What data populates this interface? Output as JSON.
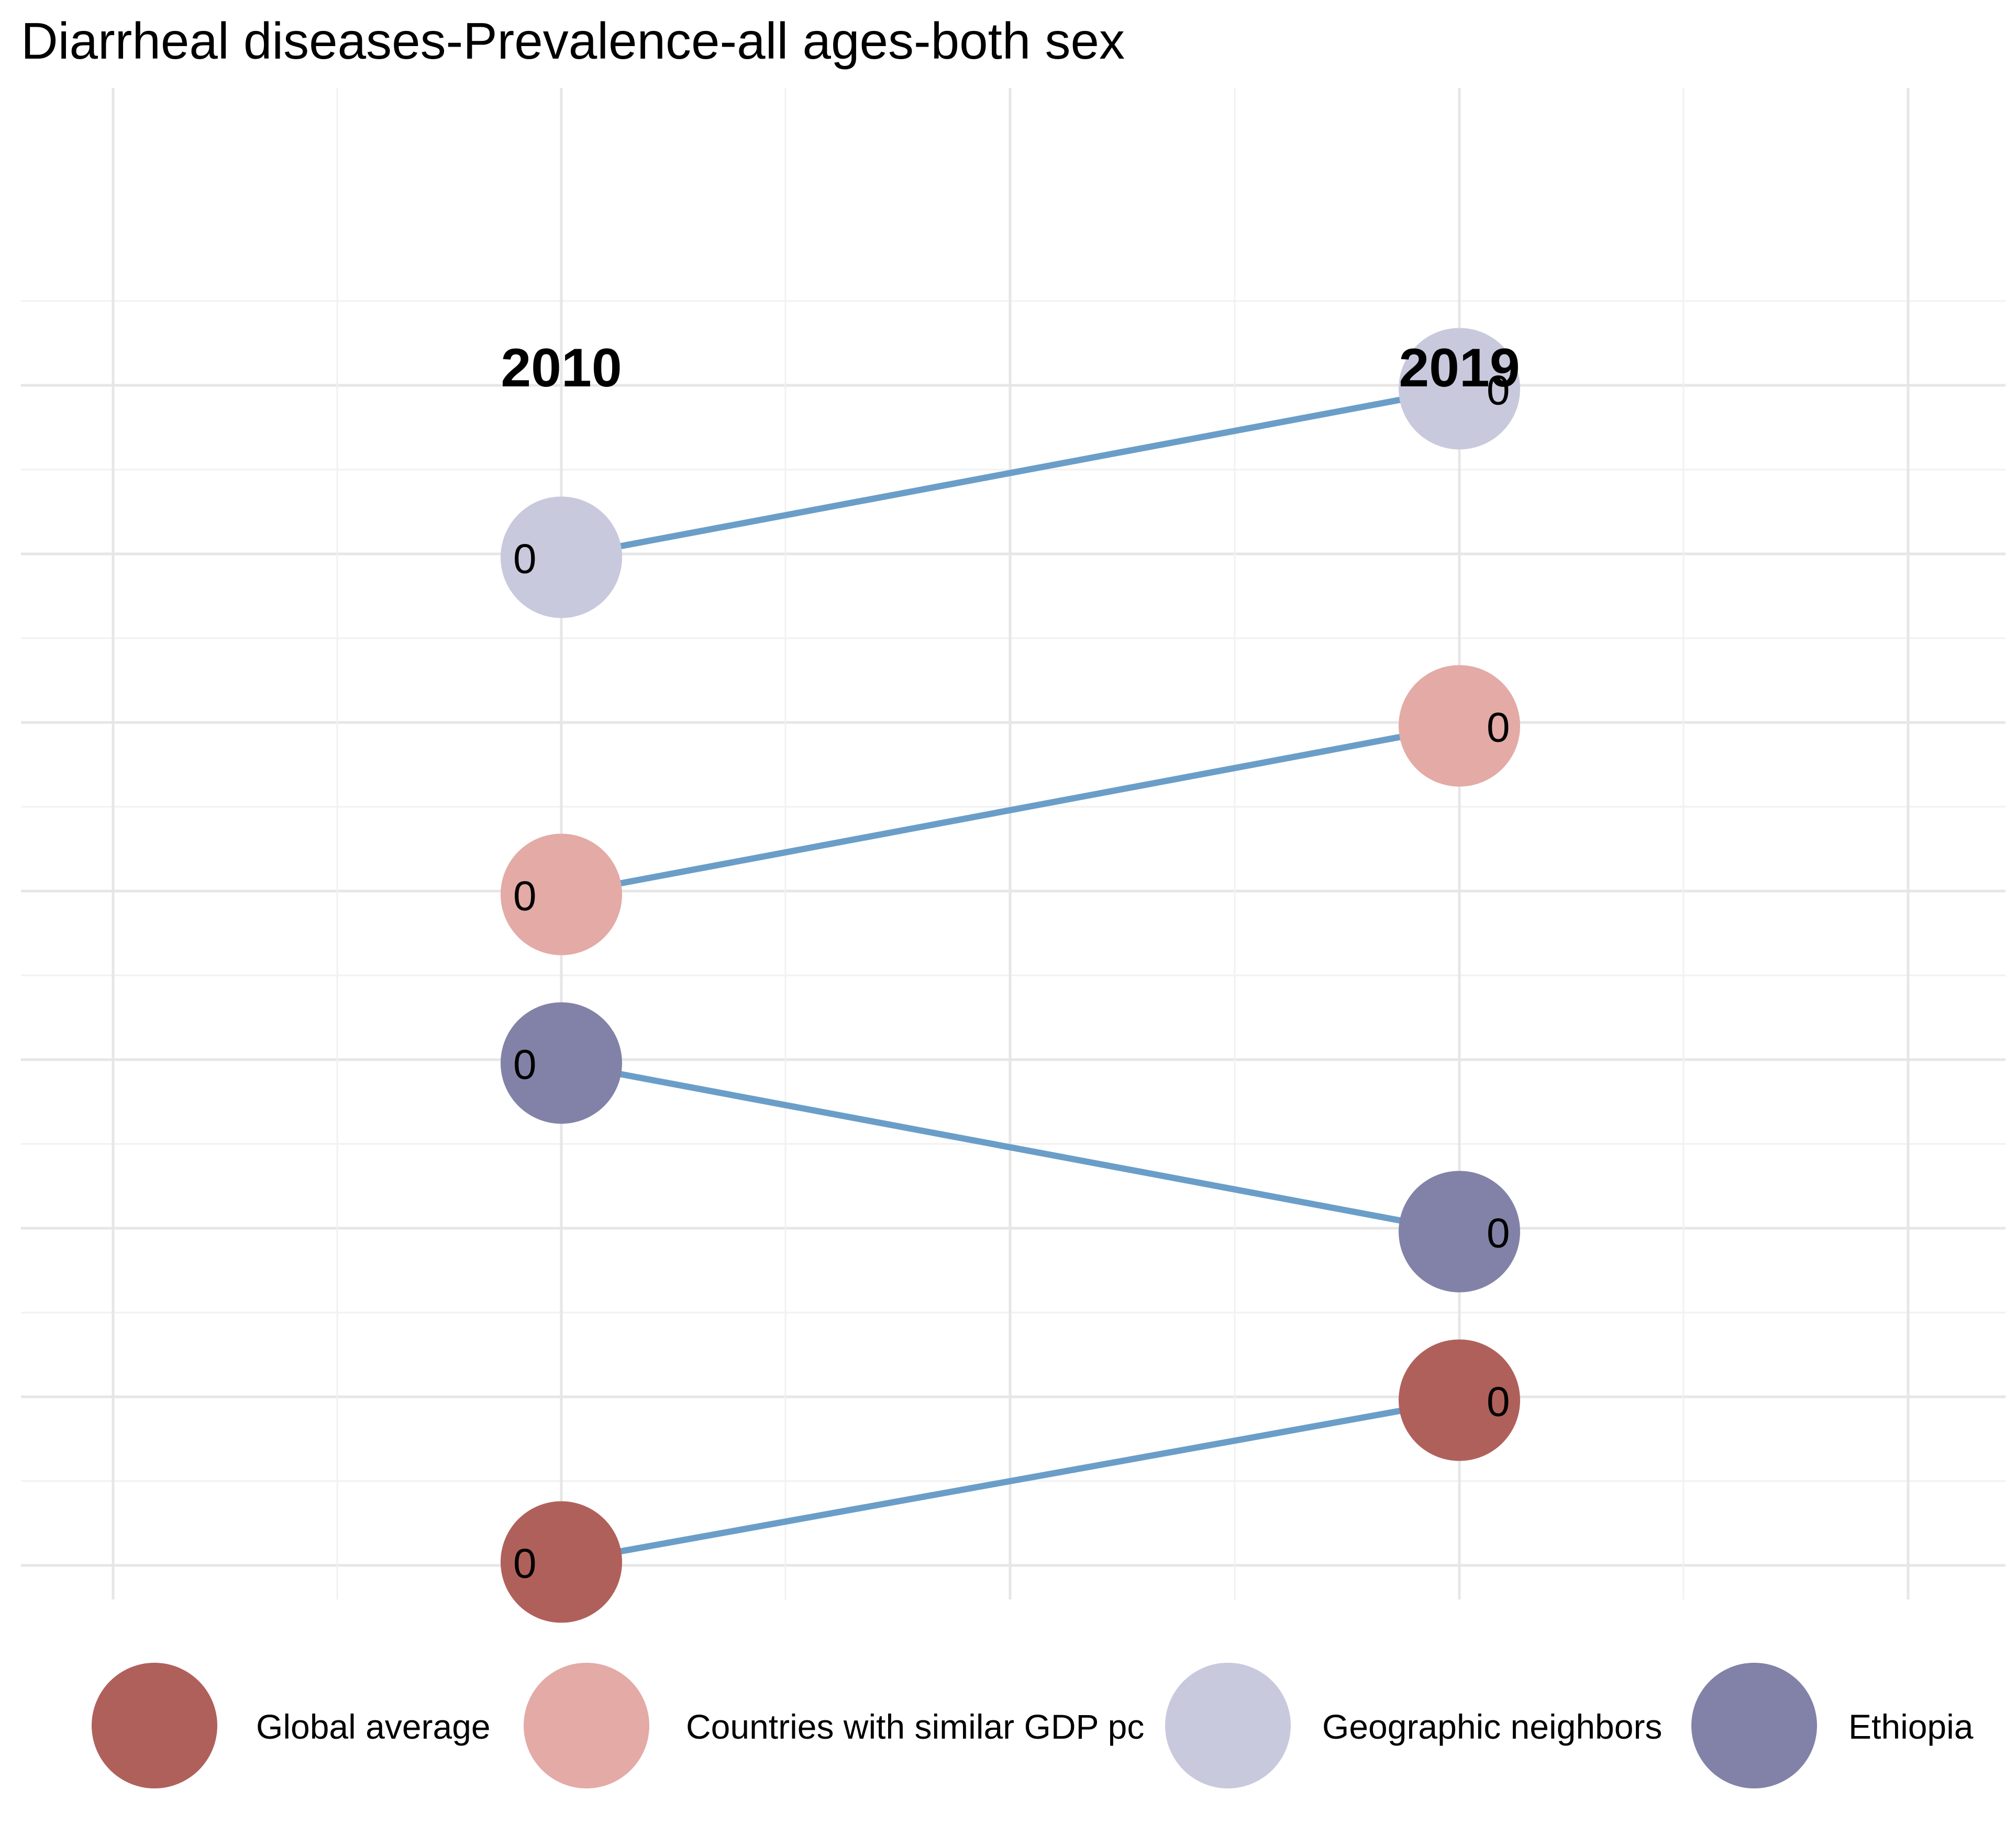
{
  "chart_data": {
    "type": "slope",
    "title": "Diarrheal diseases-Prevalence-all ages-both sex",
    "xlabel": "",
    "ylabel": "",
    "periods": [
      "2010",
      "2019"
    ],
    "grid": true,
    "legend_position": "bottom",
    "line_color": "#6a9ec8",
    "series": [
      {
        "name": "Global average",
        "color": "#b0605a",
        "rank": [
          1.02,
          1.98
        ],
        "labels": [
          "0",
          "0"
        ]
      },
      {
        "name": "Countries with similar GDP pc",
        "color": "#e3aaa6",
        "rank": [
          4.98,
          5.98
        ],
        "labels": [
          "0",
          "0"
        ]
      },
      {
        "name": "Geographic neighbors",
        "color": "#c8c9dc",
        "rank": [
          6.98,
          7.98
        ],
        "labels": [
          "0",
          "0"
        ]
      },
      {
        "name": "Ethiopia",
        "color": "#8282a8",
        "rank": [
          3.98,
          2.98
        ],
        "labels": [
          "0",
          "0"
        ]
      }
    ]
  }
}
